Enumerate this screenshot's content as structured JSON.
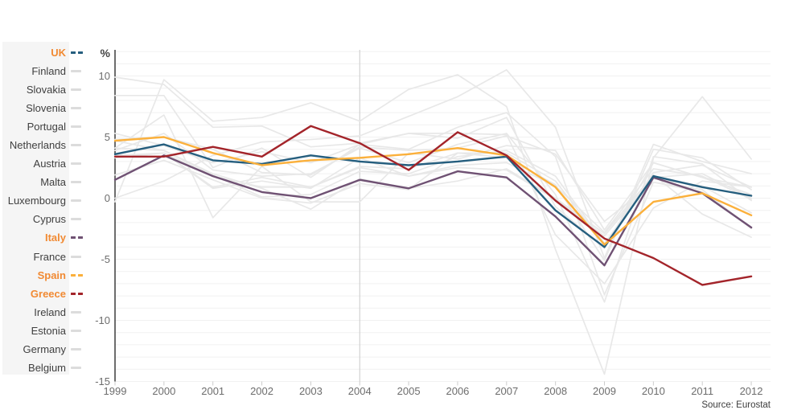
{
  "page": {
    "source_note": "Source: Eurostat"
  },
  "palette": {
    "highlight_label_orange": "#f18a33",
    "muted_line_gray": "#e8e8e8",
    "muted_dash_gray": "#dcdcdc",
    "grid_gray": "#f1f1f1",
    "axis_dark": "#2f2f2f",
    "tick_gray": "#cccccc",
    "reference_line_gray": "#c9c9c9",
    "axis_label_gray": "#6d6d6d",
    "country_label_gray": "#3f3f3f"
  },
  "sidebar": {
    "items": [
      {
        "label": "UK",
        "highlighted": true,
        "color": "#255e7e"
      },
      {
        "label": "Finland",
        "highlighted": false
      },
      {
        "label": "Slovakia",
        "highlighted": false
      },
      {
        "label": "Slovenia",
        "highlighted": false
      },
      {
        "label": "Portugal",
        "highlighted": false
      },
      {
        "label": "Netherlands",
        "highlighted": false
      },
      {
        "label": "Austria",
        "highlighted": false
      },
      {
        "label": "Malta",
        "highlighted": false
      },
      {
        "label": "Luxembourg",
        "highlighted": false
      },
      {
        "label": "Cyprus",
        "highlighted": false
      },
      {
        "label": "Italy",
        "highlighted": true,
        "color": "#6f5173"
      },
      {
        "label": "France",
        "highlighted": false
      },
      {
        "label": "Spain",
        "highlighted": true,
        "color": "#fbb03b"
      },
      {
        "label": "Greece",
        "highlighted": true,
        "color": "#a3242a"
      },
      {
        "label": "Ireland",
        "highlighted": false
      },
      {
        "label": "Estonia",
        "highlighted": false
      },
      {
        "label": "Germany",
        "highlighted": false
      },
      {
        "label": "Belgium",
        "highlighted": false
      }
    ]
  },
  "chart_data": {
    "type": "line",
    "title": "",
    "unit_label": "%",
    "x": [
      1999,
      2000,
      2001,
      2002,
      2003,
      2004,
      2005,
      2006,
      2007,
      2008,
      2009,
      2010,
      2011,
      2012
    ],
    "yticks": [
      10,
      5,
      0,
      -5,
      -10,
      -15
    ],
    "ylim": [
      -15,
      12
    ],
    "grid": "horizontal lines every 1 unit, light gray; vertical reference line at 2004",
    "legend_position": "left",
    "reference_line_x": 2004,
    "series": [
      {
        "name": "UK",
        "emphasized": true,
        "color": "#255e7e",
        "values": [
          3.6,
          4.4,
          3.1,
          2.8,
          3.5,
          3.0,
          2.7,
          3.0,
          3.4,
          -1.0,
          -4.0,
          1.8,
          0.9,
          0.2
        ]
      },
      {
        "name": "Finland",
        "emphasized": false,
        "values": [
          3.9,
          5.3,
          2.3,
          1.8,
          2.0,
          4.1,
          2.9,
          4.4,
          5.3,
          0.3,
          -8.5,
          3.4,
          2.8,
          -0.2
        ]
      },
      {
        "name": "Slovakia",
        "emphasized": false,
        "values": [
          0.0,
          1.4,
          3.5,
          4.6,
          4.8,
          5.1,
          6.7,
          8.3,
          10.5,
          5.8,
          -4.9,
          4.4,
          3.0,
          2.0
        ]
      },
      {
        "name": "Slovenia",
        "emphasized": false,
        "values": [
          5.3,
          4.3,
          2.9,
          3.8,
          2.9,
          4.4,
          4.0,
          5.8,
          7.0,
          3.4,
          -7.9,
          1.3,
          0.7,
          -2.5
        ]
      },
      {
        "name": "Portugal",
        "emphasized": false,
        "values": [
          4.1,
          3.9,
          2.0,
          0.8,
          -0.9,
          1.6,
          0.8,
          1.4,
          2.4,
          0.0,
          -2.9,
          1.9,
          -1.3,
          -3.2
        ]
      },
      {
        "name": "Netherlands",
        "emphasized": false,
        "values": [
          4.7,
          3.9,
          1.9,
          0.1,
          0.3,
          2.2,
          2.0,
          3.4,
          3.9,
          1.8,
          -3.7,
          1.6,
          1.0,
          -1.2
        ]
      },
      {
        "name": "Austria",
        "emphasized": false,
        "values": [
          3.3,
          3.7,
          0.9,
          1.7,
          0.9,
          2.6,
          2.4,
          3.7,
          3.7,
          1.4,
          -3.8,
          2.1,
          2.7,
          0.9
        ]
      },
      {
        "name": "Malta",
        "emphasized": false,
        "values": [
          4.1,
          6.8,
          -1.6,
          2.6,
          -0.3,
          -0.3,
          3.7,
          3.2,
          4.3,
          3.9,
          -2.6,
          2.9,
          1.7,
          0.9
        ]
      },
      {
        "name": "Luxembourg",
        "emphasized": false,
        "values": [
          8.4,
          8.4,
          2.5,
          4.1,
          1.7,
          4.4,
          5.3,
          4.9,
          6.6,
          -0.7,
          -4.1,
          2.9,
          1.7,
          0.3
        ]
      },
      {
        "name": "Cyprus",
        "emphasized": false,
        "values": [
          4.8,
          5.0,
          4.0,
          2.1,
          1.9,
          4.2,
          3.9,
          4.1,
          5.1,
          3.6,
          -1.9,
          1.3,
          0.5,
          -2.4
        ]
      },
      {
        "name": "Italy",
        "emphasized": true,
        "color": "#6f5173",
        "values": [
          1.5,
          3.5,
          1.8,
          0.5,
          0.0,
          1.5,
          0.8,
          2.2,
          1.7,
          -1.5,
          -5.5,
          1.7,
          0.4,
          -2.4
        ]
      },
      {
        "name": "France",
        "emphasized": false,
        "values": [
          3.3,
          3.7,
          1.8,
          0.9,
          0.9,
          2.5,
          1.8,
          2.5,
          2.3,
          -0.1,
          -3.1,
          1.7,
          2.0,
          0.0
        ]
      },
      {
        "name": "Spain",
        "emphasized": true,
        "color": "#fbb03b",
        "values": [
          4.7,
          5.0,
          3.7,
          2.7,
          3.1,
          3.3,
          3.6,
          4.1,
          3.5,
          0.9,
          -3.8,
          -0.3,
          0.4,
          -1.4
        ]
      },
      {
        "name": "Greece",
        "emphasized": true,
        "color": "#a3242a",
        "values": [
          3.4,
          3.4,
          4.2,
          3.4,
          5.9,
          4.5,
          2.3,
          5.4,
          3.5,
          -0.2,
          -3.3,
          -4.9,
          -7.1,
          -6.4
        ]
      },
      {
        "name": "Ireland",
        "emphasized": false,
        "values": [
          9.9,
          9.3,
          5.8,
          5.9,
          4.2,
          4.5,
          5.3,
          5.3,
          5.2,
          -3.0,
          -7.0,
          -0.8,
          1.4,
          0.9
        ]
      },
      {
        "name": "Estonia",
        "emphasized": false,
        "values": [
          -0.3,
          9.7,
          6.3,
          6.6,
          7.8,
          6.3,
          8.9,
          10.1,
          7.5,
          -4.2,
          -14.4,
          3.3,
          8.3,
          3.2
        ]
      },
      {
        "name": "Germany",
        "emphasized": false,
        "values": [
          1.9,
          3.1,
          1.5,
          0.0,
          -0.4,
          1.2,
          0.7,
          3.7,
          3.3,
          1.1,
          -5.1,
          4.0,
          3.3,
          0.7
        ]
      },
      {
        "name": "Belgium",
        "emphasized": false,
        "values": [
          3.5,
          3.7,
          0.8,
          1.4,
          0.8,
          3.3,
          1.8,
          2.7,
          2.9,
          1.0,
          -2.8,
          2.4,
          1.8,
          -0.1
        ]
      }
    ]
  }
}
